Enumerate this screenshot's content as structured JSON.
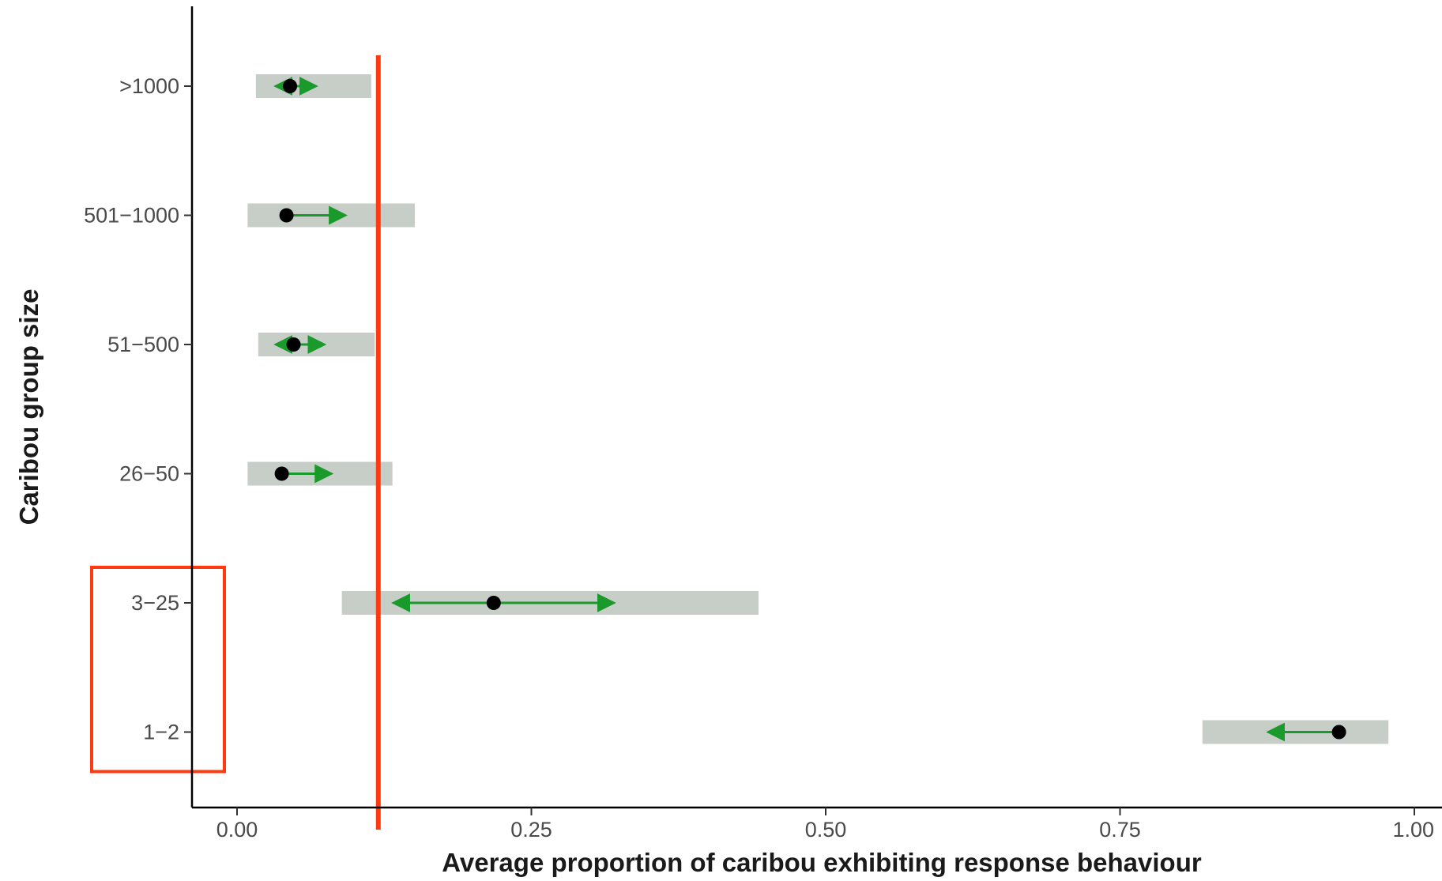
{
  "chart_data": {
    "type": "dot-interval",
    "xlabel": "Average proportion of caribou exhibiting response behaviour",
    "ylabel": "Caribou group size",
    "xlim": [
      -0.04,
      1.02
    ],
    "x_ticks": [
      {
        "value": 0.0,
        "label": "0.00"
      },
      {
        "value": 0.25,
        "label": "0.25"
      },
      {
        "value": 0.5,
        "label": "0.50"
      },
      {
        "value": 0.75,
        "label": "0.75"
      },
      {
        "value": 1.0,
        "label": "1.00"
      }
    ],
    "grid": false,
    "categories": [
      ">1000",
      "501−1000",
      "51−500",
      "26−50",
      "3−25",
      "1−2"
    ],
    "points": [
      {
        "group": ">1000",
        "mean": 0.045,
        "arrow_low": 0.035,
        "arrow_high": 0.065,
        "band_low": 0.016,
        "band_high": 0.114
      },
      {
        "group": "501−1000",
        "mean": 0.042,
        "arrow_low": 0.042,
        "arrow_high": 0.09,
        "band_low": 0.009,
        "band_high": 0.151
      },
      {
        "group": "51−500",
        "mean": 0.048,
        "arrow_low": 0.035,
        "arrow_high": 0.072,
        "band_low": 0.018,
        "band_high": 0.117
      },
      {
        "group": "26−50",
        "mean": 0.038,
        "arrow_low": 0.038,
        "arrow_high": 0.078,
        "band_low": 0.009,
        "band_high": 0.132
      },
      {
        "group": "3−25",
        "mean": 0.218,
        "arrow_low": 0.135,
        "arrow_high": 0.318,
        "band_low": 0.089,
        "band_high": 0.443
      },
      {
        "group": "1−2",
        "mean": 0.936,
        "arrow_low": 0.878,
        "arrow_high": 0.936,
        "band_low": 0.82,
        "band_high": 0.978
      }
    ],
    "reference_line": {
      "x": 0.12
    },
    "highlight_box": {
      "groups": [
        "3−25",
        "1−2"
      ]
    },
    "colors": {
      "band": "#c7cec8",
      "arrow": "#1a9a2a",
      "point": "#000000",
      "reference_line": "#ff3a10",
      "highlight_box": "#ff3a10",
      "axis": "#000000"
    }
  }
}
